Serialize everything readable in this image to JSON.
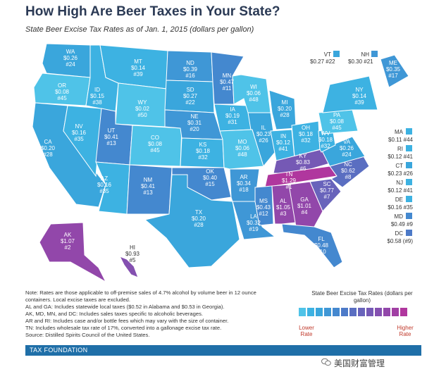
{
  "title": "How High Are Beer Taxes in Your State?",
  "subtitle": "State Beer Excise Tax Rates as of Jan. 1, 2015 (dollars per gallon)",
  "colors": {
    "scale": [
      "#4fc3e8",
      "#3db2e2",
      "#3aa6dc",
      "#3f97d6",
      "#4488cf",
      "#4d7ac8",
      "#5a6ec1",
      "#6863bb",
      "#7559b5",
      "#8450b0",
      "#9247aa",
      "#a13fa4",
      "#b0379e"
    ],
    "footer": "#1f6fa8"
  },
  "states": [
    {
      "code": "WA",
      "rate": "$0.26",
      "rank": "#24"
    },
    {
      "code": "OR",
      "rate": "$0.08",
      "rank": "#45"
    },
    {
      "code": "CA",
      "rate": "$0.20",
      "rank": "#28"
    },
    {
      "code": "NV",
      "rate": "$0.16",
      "rank": "#35"
    },
    {
      "code": "ID",
      "rate": "$0.15",
      "rank": "#38"
    },
    {
      "code": "MT",
      "rate": "$0.14",
      "rank": "#39"
    },
    {
      "code": "WY",
      "rate": "$0.02",
      "rank": "#50"
    },
    {
      "code": "UT",
      "rate": "$0.41",
      "rank": "#13"
    },
    {
      "code": "AZ",
      "rate": "$0.16",
      "rank": "#35"
    },
    {
      "code": "CO",
      "rate": "$0.08",
      "rank": "#45"
    },
    {
      "code": "NM",
      "rate": "$0.41",
      "rank": "#13"
    },
    {
      "code": "ND",
      "rate": "$0.39",
      "rank": "#16"
    },
    {
      "code": "SD",
      "rate": "$0.27",
      "rank": "#22"
    },
    {
      "code": "NE",
      "rate": "$0.31",
      "rank": "#20"
    },
    {
      "code": "KS",
      "rate": "$0.18",
      "rank": "#32"
    },
    {
      "code": "OK",
      "rate": "$0.40",
      "rank": "#15"
    },
    {
      "code": "TX",
      "rate": "$0.20",
      "rank": "#28"
    },
    {
      "code": "MN",
      "rate": "$0.47",
      "rank": "#11"
    },
    {
      "code": "IA",
      "rate": "$0.19",
      "rank": "#31"
    },
    {
      "code": "MO",
      "rate": "$0.06",
      "rank": "#48"
    },
    {
      "code": "AR",
      "rate": "$0.34",
      "rank": "#18"
    },
    {
      "code": "LA",
      "rate": "$0.32",
      "rank": "#19"
    },
    {
      "code": "WI",
      "rate": "$0.06",
      "rank": "#48"
    },
    {
      "code": "IL",
      "rate": "$0.23",
      "rank": "#26"
    },
    {
      "code": "MI",
      "rate": "$0.20",
      "rank": "#28"
    },
    {
      "code": "IN",
      "rate": "$0.12",
      "rank": "#41"
    },
    {
      "code": "OH",
      "rate": "$0.18",
      "rank": "#32"
    },
    {
      "code": "KY",
      "rate": "$0.83",
      "rank": "#6"
    },
    {
      "code": "TN",
      "rate": "$1.29",
      "rank": "#1"
    },
    {
      "code": "MS",
      "rate": "$0.43",
      "rank": "#12"
    },
    {
      "code": "AL",
      "rate": "$1.05",
      "rank": "#3"
    },
    {
      "code": "GA",
      "rate": "$1.01",
      "rank": "#4"
    },
    {
      "code": "FL",
      "rate": "$0.48",
      "rank": "#10"
    },
    {
      "code": "SC",
      "rate": "$0.77",
      "rank": "#7"
    },
    {
      "code": "NC",
      "rate": "$0.62",
      "rank": "#8"
    },
    {
      "code": "VA",
      "rate": "$0.26",
      "rank": "#24"
    },
    {
      "code": "WV",
      "rate": "$0.18",
      "rank": "#32"
    },
    {
      "code": "PA",
      "rate": "$0.08",
      "rank": "#45"
    },
    {
      "code": "NY",
      "rate": "$0.14",
      "rank": "#39"
    },
    {
      "code": "ME",
      "rate": "$0.35",
      "rank": "#17"
    },
    {
      "code": "AK",
      "rate": "$1.07",
      "rank": "#2"
    },
    {
      "code": "HI",
      "rate": "$0.93",
      "rank": "#5"
    }
  ],
  "side_states": [
    {
      "code": "VT",
      "rate": "$0.27",
      "rank": "#22"
    },
    {
      "code": "NH",
      "rate": "$0.30",
      "rank": "#21"
    },
    {
      "code": "MA",
      "rate": "$0.11",
      "rank": "#44"
    },
    {
      "code": "RI",
      "rate": "$0.12",
      "rank": "#41"
    },
    {
      "code": "CT",
      "rate": "$0.23",
      "rank": "#26"
    },
    {
      "code": "NJ",
      "rate": "$0.12",
      "rank": "#41"
    },
    {
      "code": "DE",
      "rate": "$0.16",
      "rank": "#35"
    },
    {
      "code": "MD",
      "rate": "$0.49",
      "rank": "#9"
    },
    {
      "code": "DC",
      "rate": "$0.58",
      "rank": "(#9)"
    }
  ],
  "notes": [
    "Note: Rates are those applicable to off-premise sales of 4.7% alcohol by volume beer in 12 ounce containers. Local excise taxes are excluded.",
    "AL and GA: Includes statewide local taxes ($0.52 in Alabama and $0.53 in Georgia).",
    "AK, MD, MN, and DC: Includes sales taxes specific to alcoholic beverages.",
    "AR and RI: Includes case and/or bottle fees which may vary with the size of container.",
    "TN: Includes wholesale tax rate of 17%, converted into a gallonage excise tax rate.",
    "Source: Distilled Spirits Council of the United States."
  ],
  "legend": {
    "title": "State Beer Excise Tax Rates (dollars per gallon)",
    "low": "Lower Rate",
    "high": "Higher Rate"
  },
  "footer": "TAX FOUNDATION",
  "watermark": "美国财富管理"
}
